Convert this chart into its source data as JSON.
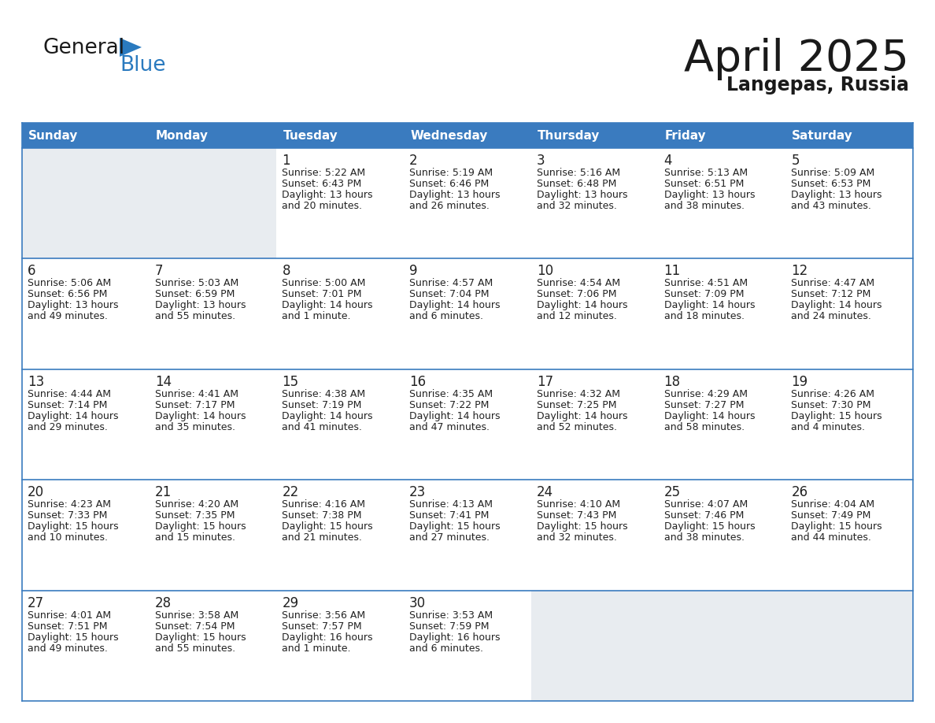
{
  "title": "April 2025",
  "subtitle": "Langepas, Russia",
  "header_color": "#3a7bbf",
  "header_text_color": "#ffffff",
  "cell_bg_white": "#ffffff",
  "cell_bg_empty": "#e8ecf0",
  "cell_border_color": "#3a7bbf",
  "row_line_color": "#3a7bbf",
  "bg_color": "#ffffff",
  "days_of_week": [
    "Sunday",
    "Monday",
    "Tuesday",
    "Wednesday",
    "Thursday",
    "Friday",
    "Saturday"
  ],
  "calendar_data": [
    [
      {
        "day": null,
        "sunrise": null,
        "sunset": null,
        "daylight": null
      },
      {
        "day": null,
        "sunrise": null,
        "sunset": null,
        "daylight": null
      },
      {
        "day": 1,
        "sunrise": "5:22 AM",
        "sunset": "6:43 PM",
        "daylight": "13 hours\nand 20 minutes."
      },
      {
        "day": 2,
        "sunrise": "5:19 AM",
        "sunset": "6:46 PM",
        "daylight": "13 hours\nand 26 minutes."
      },
      {
        "day": 3,
        "sunrise": "5:16 AM",
        "sunset": "6:48 PM",
        "daylight": "13 hours\nand 32 minutes."
      },
      {
        "day": 4,
        "sunrise": "5:13 AM",
        "sunset": "6:51 PM",
        "daylight": "13 hours\nand 38 minutes."
      },
      {
        "day": 5,
        "sunrise": "5:09 AM",
        "sunset": "6:53 PM",
        "daylight": "13 hours\nand 43 minutes."
      }
    ],
    [
      {
        "day": 6,
        "sunrise": "5:06 AM",
        "sunset": "6:56 PM",
        "daylight": "13 hours\nand 49 minutes."
      },
      {
        "day": 7,
        "sunrise": "5:03 AM",
        "sunset": "6:59 PM",
        "daylight": "13 hours\nand 55 minutes."
      },
      {
        "day": 8,
        "sunrise": "5:00 AM",
        "sunset": "7:01 PM",
        "daylight": "14 hours\nand 1 minute."
      },
      {
        "day": 9,
        "sunrise": "4:57 AM",
        "sunset": "7:04 PM",
        "daylight": "14 hours\nand 6 minutes."
      },
      {
        "day": 10,
        "sunrise": "4:54 AM",
        "sunset": "7:06 PM",
        "daylight": "14 hours\nand 12 minutes."
      },
      {
        "day": 11,
        "sunrise": "4:51 AM",
        "sunset": "7:09 PM",
        "daylight": "14 hours\nand 18 minutes."
      },
      {
        "day": 12,
        "sunrise": "4:47 AM",
        "sunset": "7:12 PM",
        "daylight": "14 hours\nand 24 minutes."
      }
    ],
    [
      {
        "day": 13,
        "sunrise": "4:44 AM",
        "sunset": "7:14 PM",
        "daylight": "14 hours\nand 29 minutes."
      },
      {
        "day": 14,
        "sunrise": "4:41 AM",
        "sunset": "7:17 PM",
        "daylight": "14 hours\nand 35 minutes."
      },
      {
        "day": 15,
        "sunrise": "4:38 AM",
        "sunset": "7:19 PM",
        "daylight": "14 hours\nand 41 minutes."
      },
      {
        "day": 16,
        "sunrise": "4:35 AM",
        "sunset": "7:22 PM",
        "daylight": "14 hours\nand 47 minutes."
      },
      {
        "day": 17,
        "sunrise": "4:32 AM",
        "sunset": "7:25 PM",
        "daylight": "14 hours\nand 52 minutes."
      },
      {
        "day": 18,
        "sunrise": "4:29 AM",
        "sunset": "7:27 PM",
        "daylight": "14 hours\nand 58 minutes."
      },
      {
        "day": 19,
        "sunrise": "4:26 AM",
        "sunset": "7:30 PM",
        "daylight": "15 hours\nand 4 minutes."
      }
    ],
    [
      {
        "day": 20,
        "sunrise": "4:23 AM",
        "sunset": "7:33 PM",
        "daylight": "15 hours\nand 10 minutes."
      },
      {
        "day": 21,
        "sunrise": "4:20 AM",
        "sunset": "7:35 PM",
        "daylight": "15 hours\nand 15 minutes."
      },
      {
        "day": 22,
        "sunrise": "4:16 AM",
        "sunset": "7:38 PM",
        "daylight": "15 hours\nand 21 minutes."
      },
      {
        "day": 23,
        "sunrise": "4:13 AM",
        "sunset": "7:41 PM",
        "daylight": "15 hours\nand 27 minutes."
      },
      {
        "day": 24,
        "sunrise": "4:10 AM",
        "sunset": "7:43 PM",
        "daylight": "15 hours\nand 32 minutes."
      },
      {
        "day": 25,
        "sunrise": "4:07 AM",
        "sunset": "7:46 PM",
        "daylight": "15 hours\nand 38 minutes."
      },
      {
        "day": 26,
        "sunrise": "4:04 AM",
        "sunset": "7:49 PM",
        "daylight": "15 hours\nand 44 minutes."
      }
    ],
    [
      {
        "day": 27,
        "sunrise": "4:01 AM",
        "sunset": "7:51 PM",
        "daylight": "15 hours\nand 49 minutes."
      },
      {
        "day": 28,
        "sunrise": "3:58 AM",
        "sunset": "7:54 PM",
        "daylight": "15 hours\nand 55 minutes."
      },
      {
        "day": 29,
        "sunrise": "3:56 AM",
        "sunset": "7:57 PM",
        "daylight": "16 hours\nand 1 minute."
      },
      {
        "day": 30,
        "sunrise": "3:53 AM",
        "sunset": "7:59 PM",
        "daylight": "16 hours\nand 6 minutes."
      },
      {
        "day": null,
        "sunrise": null,
        "sunset": null,
        "daylight": null
      },
      {
        "day": null,
        "sunrise": null,
        "sunset": null,
        "daylight": null
      },
      {
        "day": null,
        "sunrise": null,
        "sunset": null,
        "daylight": null
      }
    ]
  ],
  "logo_text_general": "General",
  "logo_text_blue": "Blue",
  "logo_color_general": "#1a1a1a",
  "logo_color_blue": "#2a7abf",
  "logo_triangle_color": "#2a7abf",
  "title_fontsize": 40,
  "subtitle_fontsize": 17,
  "header_fontsize": 11,
  "day_num_fontsize": 12,
  "cell_text_fontsize": 9
}
